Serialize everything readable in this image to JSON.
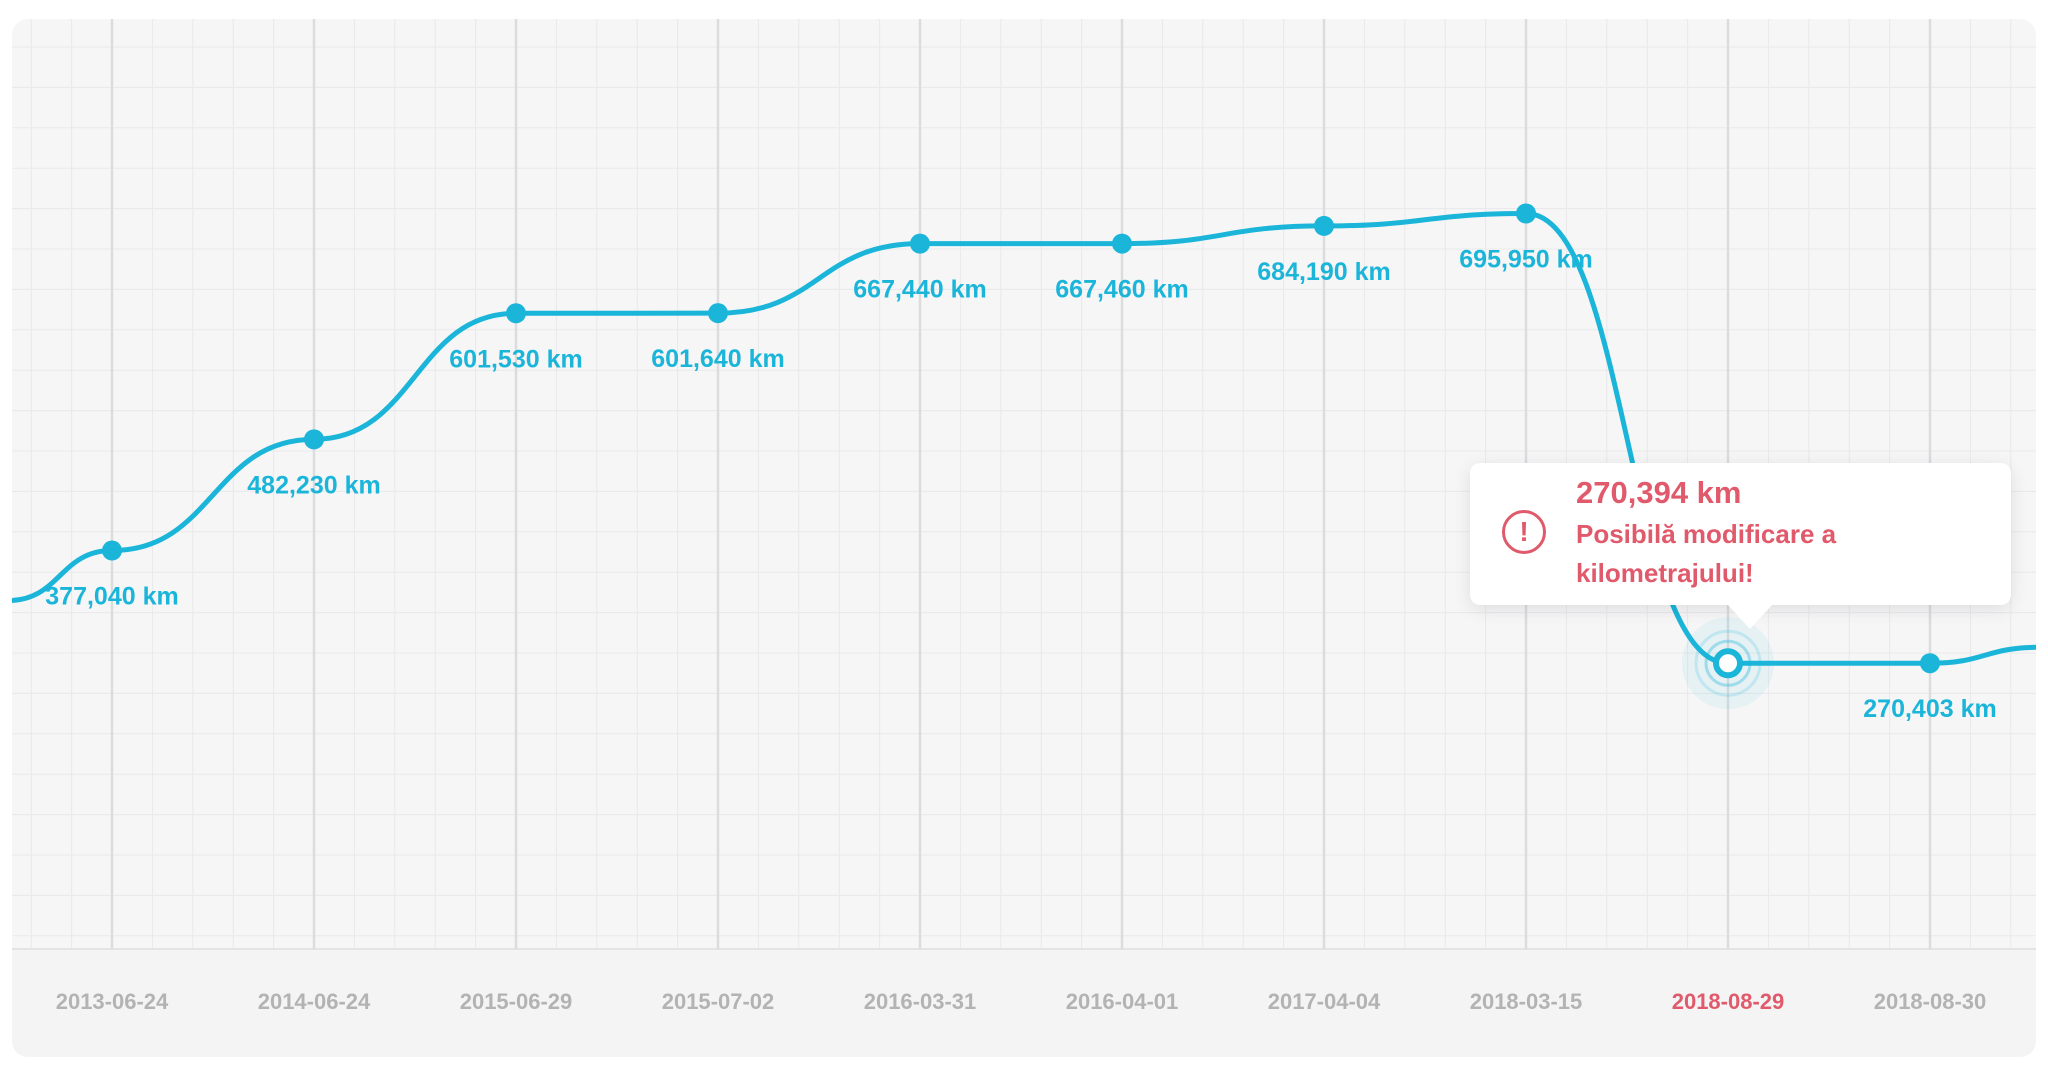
{
  "chart_data": {
    "type": "line",
    "x": [
      "2013-06-24",
      "2014-06-24",
      "2015-06-29",
      "2015-07-02",
      "2016-03-31",
      "2016-04-01",
      "2017-04-04",
      "2018-03-15",
      "2018-08-29",
      "2018-08-30"
    ],
    "series": [
      {
        "values": [
          377040,
          482230,
          601530,
          601640,
          667440,
          667460,
          684190,
          695950,
          270394,
          270403
        ],
        "labels": [
          "377,040 km",
          "482,230 km",
          "601,530 km",
          "601,640 km",
          "667,440 km",
          "667,460 km",
          "684,190 km",
          "695,950 km",
          "270,394 km",
          "270,403 km"
        ]
      }
    ],
    "highlight_index": 8,
    "grid": true,
    "colors": {
      "line": "#1ab5d9",
      "alert": "#e05a6b",
      "axis_text": "#b3b3b3",
      "background": "#f6f6f7"
    },
    "ylim": [
      0,
      880000
    ]
  },
  "tooltip": {
    "value": "270,394 km",
    "message": "Posibilă modificare a kilometrajului!",
    "icon": "exclamation-circle-icon"
  }
}
